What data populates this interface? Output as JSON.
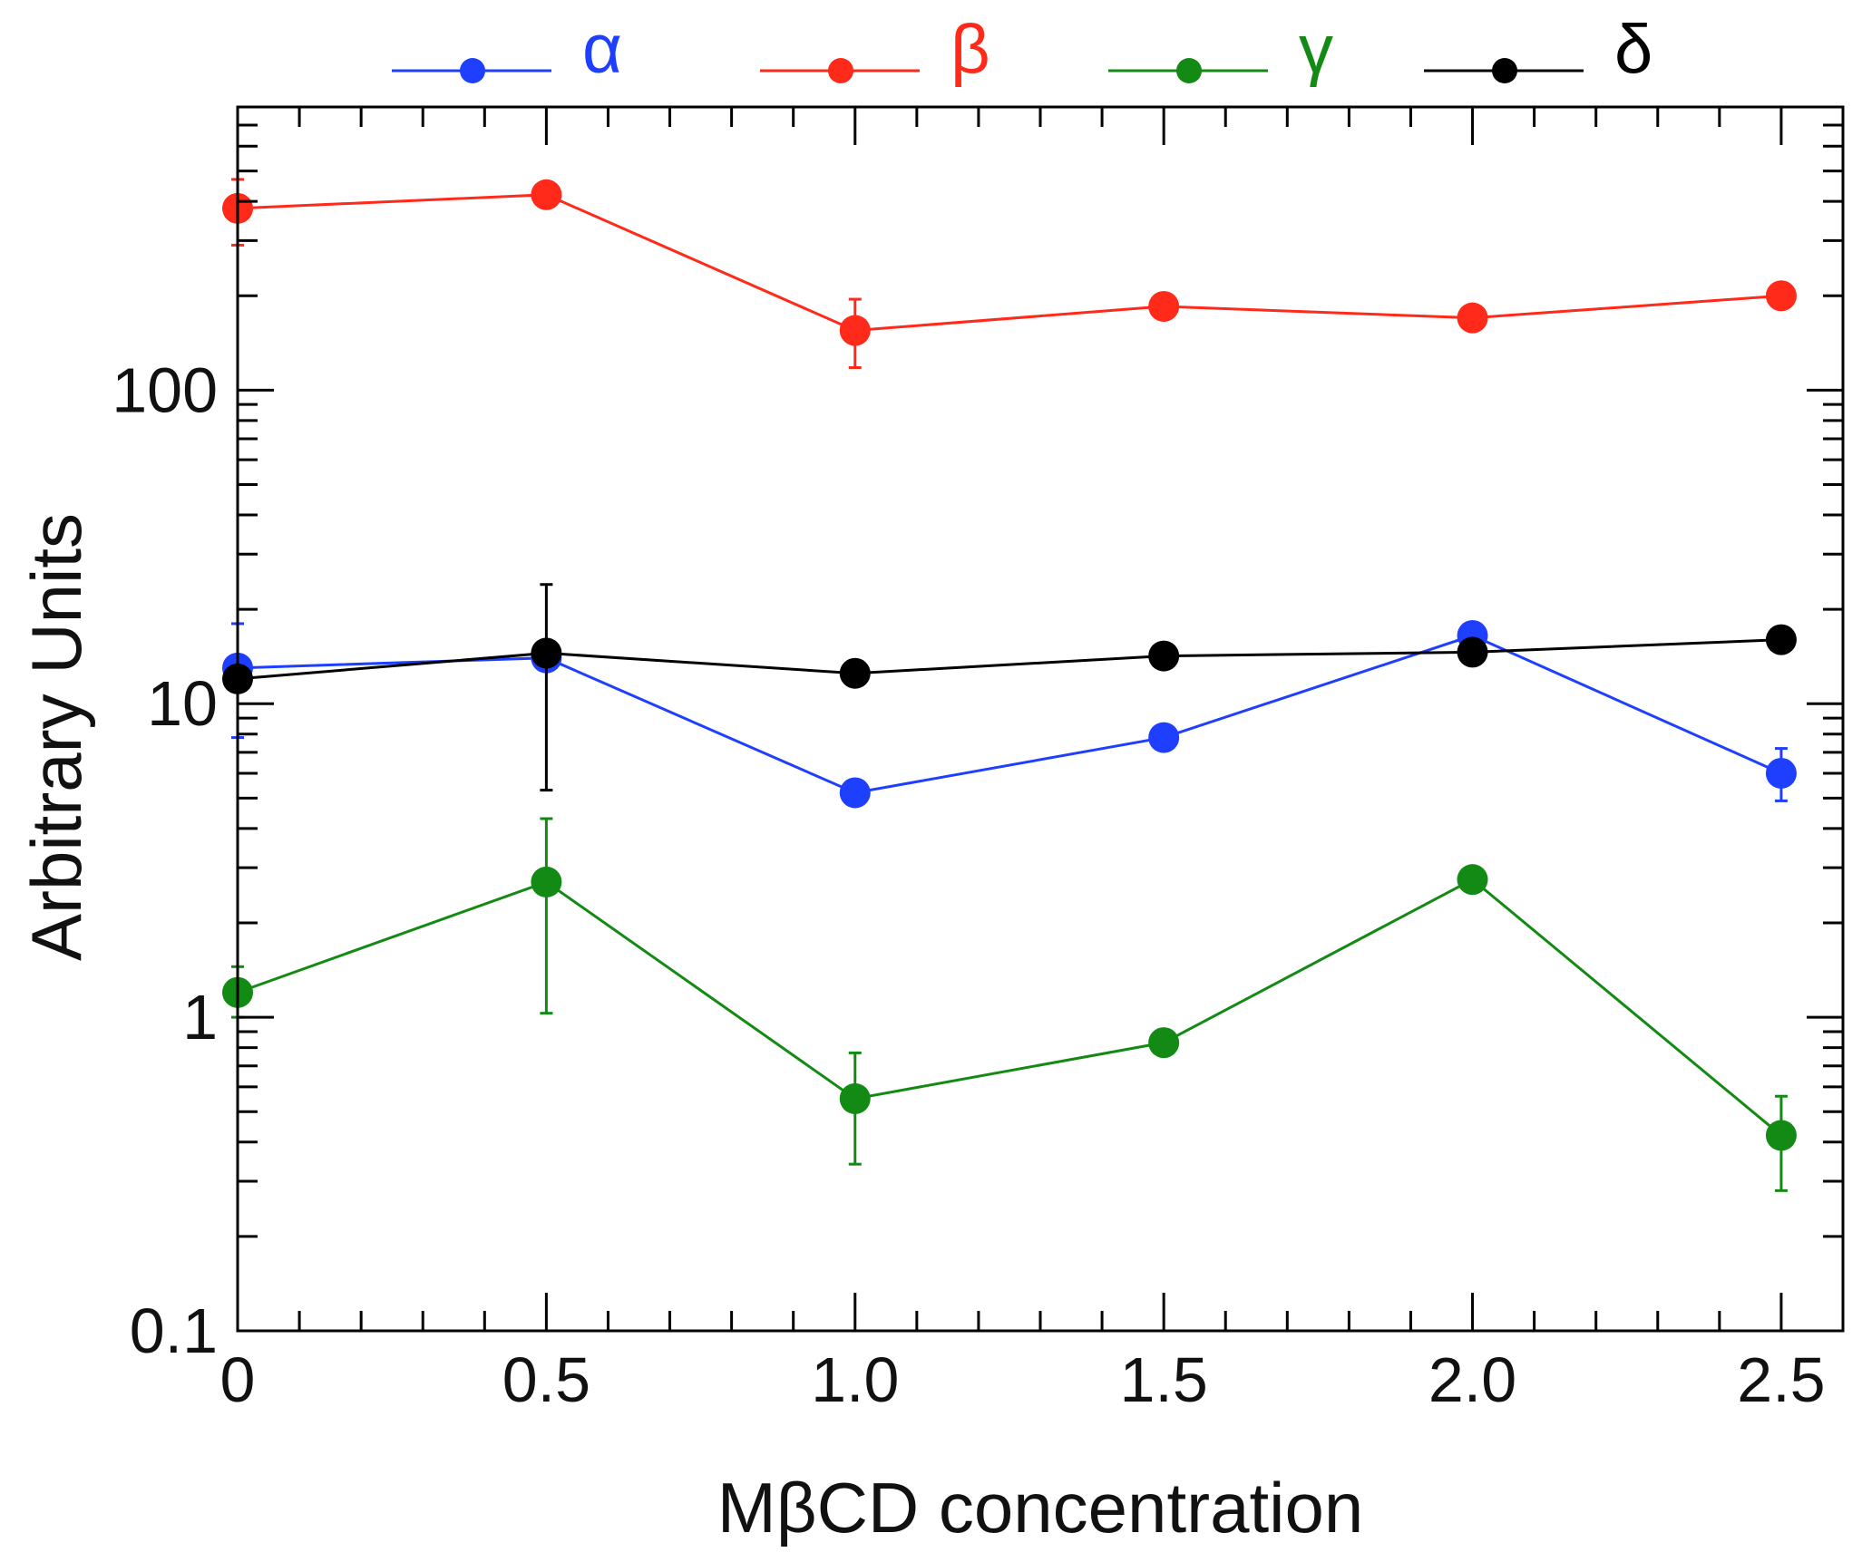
{
  "chart_data": {
    "type": "line",
    "title": "",
    "xlabel": "MβCD concentration",
    "ylabel": "Arbitrary Units",
    "x": [
      0,
      0.5,
      1.0,
      1.5,
      2.0,
      2.5
    ],
    "xlim": [
      0,
      2.6
    ],
    "ylim": [
      0.1,
      800
    ],
    "yscale": "log",
    "x_ticks": [
      {
        "value": 0,
        "label": "0"
      },
      {
        "value": 0.5,
        "label": "0.5"
      },
      {
        "value": 1.0,
        "label": "1.0"
      },
      {
        "value": 1.5,
        "label": "1.5"
      },
      {
        "value": 2.0,
        "label": "2.0"
      },
      {
        "value": 2.5,
        "label": "2.5"
      }
    ],
    "y_ticks": [
      {
        "value": 0.1,
        "label": "0.1"
      },
      {
        "value": 1,
        "label": "1"
      },
      {
        "value": 10,
        "label": "10"
      },
      {
        "value": 100,
        "label": "100"
      }
    ],
    "grid": false,
    "legend_position": "top",
    "series": [
      {
        "name": "α",
        "color": "#1f3fff",
        "values": [
          13.0,
          14.0,
          5.2,
          7.8,
          16.5,
          6.0
        ],
        "err_low": [
          7.8,
          null,
          4.9,
          null,
          null,
          4.9
        ],
        "err_high": [
          18.0,
          null,
          5.6,
          null,
          null,
          7.2
        ]
      },
      {
        "name": "β",
        "color": "#ff2a1a",
        "values": [
          380,
          420,
          155,
          185,
          170,
          200
        ],
        "err_low": [
          290,
          null,
          118,
          170,
          null,
          null
        ],
        "err_high": [
          470,
          null,
          195,
          200,
          null,
          null
        ]
      },
      {
        "name": "γ",
        "color": "#138a13",
        "values": [
          1.2,
          2.7,
          0.55,
          0.83,
          2.75,
          0.42
        ],
        "err_low": [
          1.0,
          1.03,
          0.34,
          null,
          null,
          0.28
        ],
        "err_high": [
          1.45,
          4.3,
          0.77,
          null,
          null,
          0.56
        ]
      },
      {
        "name": "δ",
        "color": "#000000",
        "values": [
          12.0,
          14.5,
          12.5,
          14.2,
          14.6,
          16.0
        ],
        "err_low": [
          null,
          5.3,
          null,
          null,
          null,
          null
        ],
        "err_high": [
          null,
          24.0,
          null,
          null,
          null,
          null
        ]
      }
    ]
  }
}
